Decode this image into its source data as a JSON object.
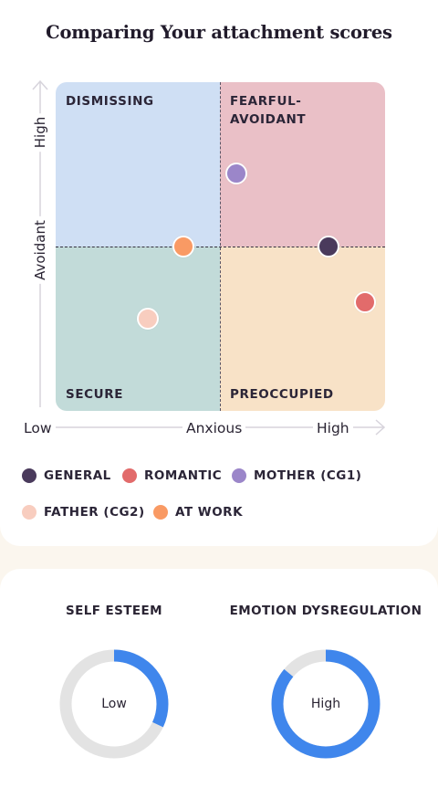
{
  "chart": {
    "title": "Comparing Your attachment scores",
    "quadrants": {
      "top_left": "DISMISSING",
      "top_right": "FEARFUL-\nAVOIDANT",
      "bottom_left": "SECURE",
      "bottom_right": "PREOCCUPIED"
    },
    "y_axis": {
      "high_label": "High",
      "name": "Avoidant"
    },
    "x_axis": {
      "low_label": "Low",
      "name": "Anxious",
      "high_label": "High"
    },
    "colors": {
      "general": "#4a3a5c",
      "romantic": "#e26b6b",
      "mother": "#9b86c9",
      "father": "#f8cdbf",
      "at_work": "#f99a64",
      "quad_dismissing": "#cfdff4",
      "quad_fearful": "#eac0c7",
      "quad_secure": "#c2dbd9",
      "quad_preoccupied": "#f8e2c7"
    }
  },
  "chart_data": {
    "type": "scatter",
    "title": "Comparing Your attachment scores",
    "xlabel": "Anxious",
    "ylabel": "Avoidant",
    "xlim": [
      0,
      1
    ],
    "ylim": [
      0,
      1
    ],
    "series": [
      {
        "name": "GENERAL",
        "x": 0.83,
        "y": 0.5
      },
      {
        "name": "ROMANTIC",
        "x": 0.94,
        "y": 0.33
      },
      {
        "name": "MOTHER (CG1)",
        "x": 0.55,
        "y": 0.72
      },
      {
        "name": "FATHER (CG2)",
        "x": 0.28,
        "y": 0.28
      },
      {
        "name": "AT WORK",
        "x": 0.39,
        "y": 0.5
      }
    ]
  },
  "legend": [
    {
      "key": "general",
      "label": "GENERAL"
    },
    {
      "key": "romantic",
      "label": "ROMANTIC"
    },
    {
      "key": "mother",
      "label": "MOTHER (CG1)"
    },
    {
      "key": "father",
      "label": "FATHER (CG2)"
    },
    {
      "key": "at_work",
      "label": "AT WORK"
    }
  ],
  "scores": [
    {
      "title": "SELF ESTEEM",
      "value_label": "Low",
      "fraction": 0.32
    },
    {
      "title": "EMOTION DYSREGULATION",
      "value_label": "High",
      "fraction": 0.86
    }
  ],
  "score_colors": {
    "fill": "#3f86ec",
    "track": "#e3e3e3"
  }
}
